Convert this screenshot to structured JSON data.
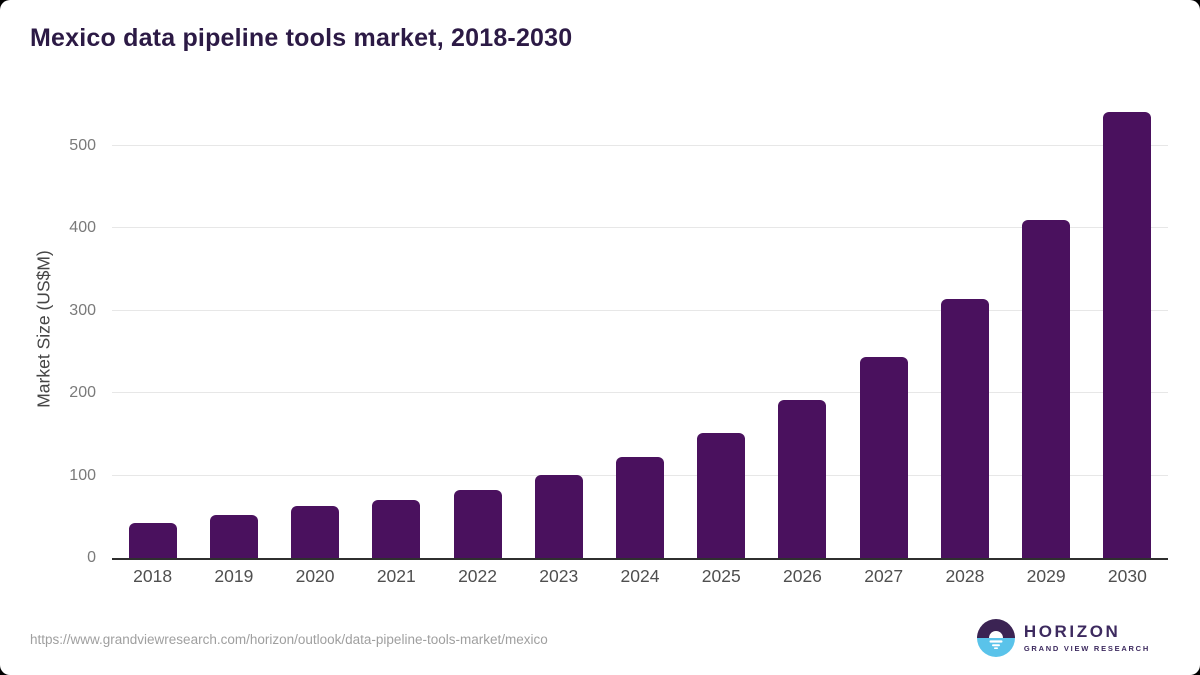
{
  "chart_data": {
    "type": "bar",
    "title": "Mexico data pipeline tools market, 2018-2030",
    "xlabel": "",
    "ylabel": "Market Size (US$M)",
    "categories": [
      "2018",
      "2019",
      "2020",
      "2021",
      "2022",
      "2023",
      "2024",
      "2025",
      "2026",
      "2027",
      "2028",
      "2029",
      "2030"
    ],
    "values": [
      43,
      52,
      63,
      70,
      83,
      101,
      123,
      152,
      192,
      244,
      314,
      410,
      541
    ],
    "yticks": [
      0,
      100,
      200,
      300,
      400,
      500
    ],
    "ylim": [
      0,
      556
    ],
    "grid": true,
    "legend": false,
    "bar_color": "#4a115e",
    "gridline_color": "#e7e7e7",
    "axis_line_color": "#2f2f2f",
    "xtick_label_color": "#4f4f4f",
    "ytick_label_color": "#7a7a7a"
  },
  "footer": {
    "source_url": "https://www.grandviewresearch.com/horizon/outlook/data-pipeline-tools-market/mexico",
    "logo": {
      "name": "HORIZON",
      "subtitle": "GRAND VIEW RESEARCH",
      "icon_top_color": "#3b2353",
      "icon_bottom_color": "#5ac3ea",
      "text_color": "#3d2a5f"
    }
  },
  "colors": {
    "title": "#2c1a45",
    "page_background": "#ffffff",
    "outer_background": "#000000"
  }
}
